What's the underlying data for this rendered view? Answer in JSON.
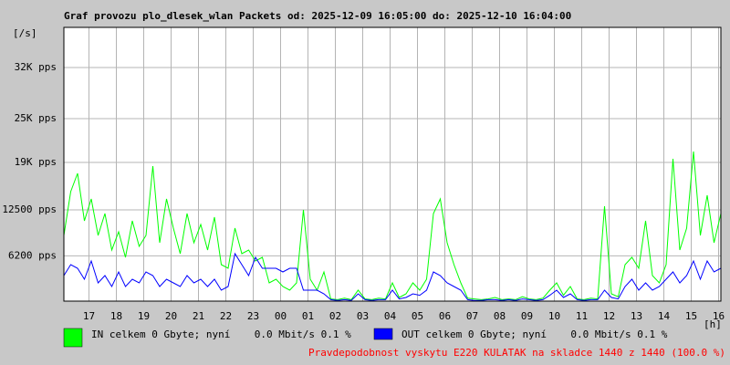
{
  "chart_data": {
    "type": "line",
    "title": "Graf provozu plo_dlesek_wlan Packets od: 2025-12-09 16:05:00 do: 2025-12-10 16:04:00",
    "yunit": "[/s]",
    "xunit": "[h]",
    "x": [
      0,
      15,
      30,
      45,
      60,
      75,
      90,
      105,
      120,
      135,
      150,
      165,
      180,
      195,
      210,
      225,
      240,
      255,
      270,
      285,
      300,
      315,
      330,
      345,
      360,
      375,
      390,
      405,
      420,
      435,
      450,
      465,
      480,
      495,
      510,
      525,
      540,
      555,
      570,
      585,
      600,
      615,
      630,
      645,
      660,
      675,
      690,
      705,
      720,
      735,
      750,
      765,
      780,
      795,
      810,
      825,
      840,
      855,
      870,
      885,
      900,
      915,
      930,
      945,
      960,
      975,
      990,
      1005,
      1020,
      1035,
      1050,
      1065,
      1080,
      1095,
      1110,
      1125,
      1140,
      1155,
      1170,
      1185,
      1200,
      1215,
      1230,
      1245,
      1260,
      1275,
      1290,
      1305,
      1320,
      1335,
      1350,
      1365,
      1380,
      1395,
      1410,
      1425,
      1440
    ],
    "series": [
      {
        "name": "IN celkem 0 Gbyte; nyní    0.0 Mbit/s 0.1 %",
        "color": "#00ff00",
        "values": [
          9000,
          15000,
          17500,
          11000,
          14000,
          9000,
          12000,
          7000,
          9500,
          6000,
          11000,
          7500,
          9000,
          18500,
          8000,
          14000,
          10000,
          6500,
          12000,
          8000,
          10500,
          7000,
          11500,
          5000,
          4500,
          10000,
          6500,
          7000,
          5500,
          6000,
          2500,
          3000,
          2000,
          1500,
          2500,
          12500,
          3000,
          1500,
          4000,
          300,
          200,
          400,
          200,
          1500,
          300,
          200,
          400,
          300,
          2500,
          500,
          1000,
          2500,
          1500,
          3000,
          12000,
          14000,
          8000,
          5000,
          2500,
          400,
          300,
          200,
          300,
          500,
          200,
          300,
          200,
          600,
          300,
          200,
          400,
          1500,
          2500,
          800,
          2000,
          300,
          200,
          400,
          300,
          13000,
          1000,
          600,
          5000,
          6000,
          4500,
          11000,
          3500,
          2500,
          5000,
          19500,
          7000,
          10000,
          20500,
          9000,
          14500,
          8000,
          12000
        ]
      },
      {
        "name": "OUT celkem 0 Gbyte; nyní    0.0 Mbit/s 0.1 %",
        "color": "#0000ff",
        "values": [
          3500,
          5000,
          4500,
          3000,
          5500,
          2500,
          3500,
          2000,
          4000,
          2000,
          3000,
          2500,
          4000,
          3500,
          2000,
          3000,
          2500,
          2000,
          3500,
          2500,
          3000,
          2000,
          3000,
          1500,
          2000,
          6500,
          5000,
          3500,
          6000,
          4500,
          4500,
          4500,
          4000,
          4500,
          4500,
          1500,
          1500,
          1500,
          1000,
          200,
          100,
          200,
          100,
          1000,
          200,
          100,
          200,
          200,
          1500,
          300,
          500,
          1000,
          800,
          1500,
          4000,
          3500,
          2500,
          2000,
          1500,
          200,
          100,
          100,
          200,
          200,
          100,
          200,
          100,
          300,
          200,
          100,
          200,
          800,
          1500,
          500,
          1000,
          200,
          100,
          200,
          200,
          1500,
          500,
          300,
          2000,
          3000,
          1500,
          2500,
          1500,
          2000,
          3000,
          4000,
          2500,
          3500,
          5500,
          3000,
          5500,
          4000,
          4500
        ]
      }
    ],
    "xlim": [
      0,
      1440
    ],
    "xticks": [
      {
        "value": 55,
        "label": "17"
      },
      {
        "value": 115,
        "label": "18"
      },
      {
        "value": 175,
        "label": "19"
      },
      {
        "value": 235,
        "label": "20"
      },
      {
        "value": 295,
        "label": "21"
      },
      {
        "value": 355,
        "label": "22"
      },
      {
        "value": 415,
        "label": "23"
      },
      {
        "value": 475,
        "label": "00"
      },
      {
        "value": 535,
        "label": "01"
      },
      {
        "value": 595,
        "label": "02"
      },
      {
        "value": 655,
        "label": "03"
      },
      {
        "value": 715,
        "label": "04"
      },
      {
        "value": 775,
        "label": "05"
      },
      {
        "value": 835,
        "label": "06"
      },
      {
        "value": 895,
        "label": "07"
      },
      {
        "value": 955,
        "label": "08"
      },
      {
        "value": 1015,
        "label": "09"
      },
      {
        "value": 1075,
        "label": "10"
      },
      {
        "value": 1135,
        "label": "11"
      },
      {
        "value": 1195,
        "label": "12"
      },
      {
        "value": 1255,
        "label": "13"
      },
      {
        "value": 1315,
        "label": "14"
      },
      {
        "value": 1375,
        "label": "15"
      },
      {
        "value": 1435,
        "label": "16"
      }
    ],
    "ylim": [
      0,
      37500
    ],
    "yticks": [
      {
        "value": 6200,
        "label": "6200 pps"
      },
      {
        "value": 12500,
        "label": "12500 pps"
      },
      {
        "value": 19000,
        "label": "19K pps"
      },
      {
        "value": 25000,
        "label": "25K pps"
      },
      {
        "value": 32000,
        "label": "32K pps"
      }
    ],
    "grid": true,
    "note": "Pravdepodobnost vyskytu E220 KULATAK na skladce 1440 z 1440 (100.0 %)",
    "note_color": "#ff0000"
  }
}
